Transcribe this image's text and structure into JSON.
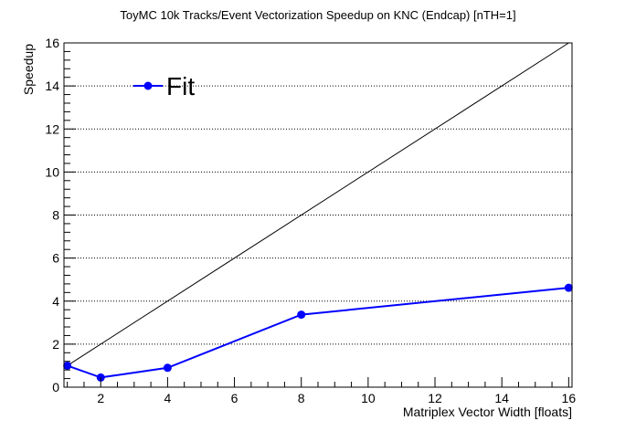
{
  "chart_data": {
    "type": "line",
    "title": "ToyMC 10k Tracks/Event Vectorization Speedup on KNC (Endcap) [nTH=1]",
    "xlabel": "Matriplex Vector Width [floats]",
    "ylabel": "Speedup",
    "xlim": [
      0.9,
      16.1
    ],
    "ylim": [
      0,
      16
    ],
    "x_ticks": [
      2,
      4,
      6,
      8,
      10,
      12,
      14,
      16
    ],
    "y_ticks": [
      0,
      2,
      4,
      6,
      8,
      10,
      12,
      14,
      16
    ],
    "grid": "horizontal dotted",
    "legend_placement": "top-left",
    "series": [
      {
        "name": "Fit",
        "color": "#0000ff",
        "marker": "circle",
        "x": [
          1,
          2,
          4,
          8,
          16
        ],
        "values": [
          1.0,
          0.45,
          0.9,
          3.37,
          4.62
        ]
      }
    ],
    "reference_line": {
      "x": [
        1,
        16
      ],
      "y": [
        1,
        16
      ],
      "color": "#000000"
    }
  }
}
